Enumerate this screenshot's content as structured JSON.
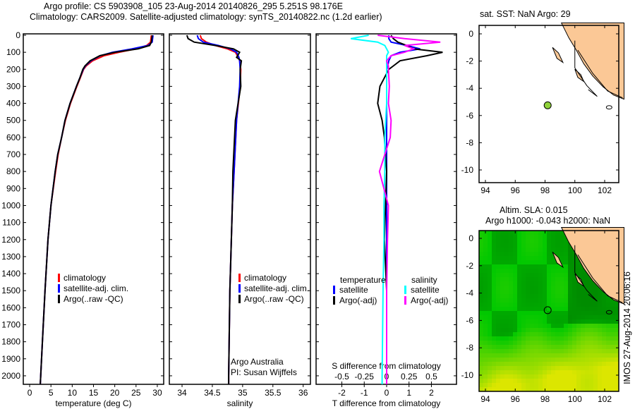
{
  "title_line1": "Argo profile: CS 5903908_105 23-Aug-2014 20140826_295 5.251S 98.176E",
  "title_line2": "Climatology: CARS2009. Satellite-adjusted climatology: synTS_20140822.nc (1.2d earlier)",
  "colors": {
    "climatology": "#ff0000",
    "satellite": "#0000ff",
    "argo": "#000000",
    "sal_satellite": "#00ffff",
    "sal_argo": "#ff00ff",
    "land": "#fbc896"
  },
  "chart_data": [
    {
      "type": "line",
      "name": "temperature",
      "xlabel": "temperature (deg C)",
      "xlim": [
        -1.5,
        31.5
      ],
      "ylim": [
        0,
        2050
      ],
      "xticks": [
        0,
        5,
        10,
        15,
        20,
        25,
        30
      ],
      "xtick_labels": [
        "0",
        "5",
        "10",
        "15",
        "20",
        "25",
        "30"
      ],
      "yticks": [
        0,
        100,
        200,
        300,
        400,
        500,
        600,
        700,
        800,
        900,
        1000,
        1100,
        1200,
        1300,
        1400,
        1500,
        1600,
        1700,
        1800,
        1900,
        2000
      ],
      "depth": [
        0,
        40,
        60,
        80,
        100,
        120,
        150,
        180,
        200,
        250,
        300,
        400,
        500,
        600,
        700,
        800,
        1000,
        1200,
        1500,
        1800,
        2000,
        2050
      ],
      "series": [
        {
          "name": "climatology",
          "values": [
            28.6,
            28.4,
            27.5,
            25,
            21,
            17.5,
            14.8,
            13.3,
            12.7,
            11.9,
            11.1,
            9.6,
            8.4,
            7.5,
            6.7,
            6.1,
            5.0,
            4.3,
            3.6,
            3.0,
            2.6,
            2.5
          ]
        },
        {
          "name": "satellite-adj. clim.",
          "values": [
            29,
            28.8,
            27.8,
            24,
            19.5,
            16.6,
            14.4,
            13.1,
            12.6,
            11.8,
            11,
            9.5,
            8.3,
            7.5,
            6.6,
            6.0,
            5.0,
            4.3,
            3.6,
            3.0,
            2.6,
            2.5
          ]
        },
        {
          "name": "Argo(..raw -QC)",
          "values": [
            28.8,
            28.6,
            28.2,
            25.5,
            20,
            16.5,
            14.2,
            13.0,
            12.5,
            11.8,
            11,
            9.5,
            8.3,
            7.5,
            6.6,
            6.0,
            5.0,
            4.3,
            3.6,
            3.0,
            2.6,
            2.5
          ]
        }
      ],
      "legend": [
        "climatology",
        "satellite-adj. clim.",
        "Argo(..raw -QC)"
      ]
    },
    {
      "type": "line",
      "name": "salinity",
      "xlabel": "salinity",
      "xlim": [
        33.79,
        36.12
      ],
      "ylim": [
        0,
        2050
      ],
      "xticks": [
        34,
        34.5,
        35,
        35.5,
        36
      ],
      "xtick_labels": [
        "34",
        "34.5",
        "35",
        "35.5",
        "36"
      ],
      "depth": [
        0,
        20,
        40,
        60,
        80,
        100,
        130,
        150,
        200,
        300,
        500,
        800,
        1000,
        1500,
        2000,
        2050
      ],
      "series": [
        {
          "name": "climatology",
          "values": [
            34.3,
            34.32,
            34.4,
            34.55,
            34.75,
            34.88,
            34.93,
            34.95,
            34.97,
            34.96,
            34.9,
            34.86,
            34.83,
            34.79,
            34.77,
            34.77
          ]
        },
        {
          "name": "satellite-adj. clim.",
          "values": [
            34.25,
            34.27,
            34.35,
            34.6,
            34.8,
            34.9,
            34.94,
            34.95,
            34.96,
            34.95,
            34.9,
            34.86,
            34.83,
            34.79,
            34.77,
            34.77
          ]
        },
        {
          "name": "Argo(..raw -QC)",
          "values": [
            34.08,
            34.1,
            34.2,
            34.55,
            34.85,
            34.95,
            34.9,
            34.98,
            34.96,
            34.97,
            34.88,
            34.84,
            34.83,
            34.79,
            34.77,
            34.77
          ]
        }
      ],
      "legend": [
        "climatology",
        "satellite-adj. clim.",
        "Argo(..raw -QC)"
      ],
      "annotation": [
        "Argo Australia",
        "PI: Susan Wijffels"
      ]
    },
    {
      "type": "line",
      "name": "difference",
      "xlabel": "T difference from climatology",
      "xlabel_top": "S difference from climatology",
      "xlim": [
        -3.15,
        3.12
      ],
      "ylim": [
        0,
        2050
      ],
      "xticks": [
        -2,
        -1,
        0,
        1,
        2
      ],
      "xtick_labels": [
        "-2",
        "-1",
        "0",
        "1",
        "2"
      ],
      "s_xticks": [
        -0.5,
        -0.25,
        0,
        0.25,
        0.5
      ],
      "s_xtick_labels": [
        "-0.5",
        "-0.25",
        "0",
        "0.25",
        "0.5"
      ],
      "depth": [
        0,
        20,
        40,
        60,
        80,
        100,
        120,
        150,
        180,
        200,
        300,
        400,
        500,
        600,
        800,
        1000,
        1200,
        1500,
        2000,
        2050
      ],
      "series": [
        {
          "name": "temperature satellite",
          "values": [
            0.1,
            0.1,
            0.2,
            0.9,
            1.5,
            0.6,
            0.2,
            0.1,
            0.05,
            0,
            0,
            0,
            0,
            0,
            0,
            0,
            0,
            0,
            0,
            0
          ]
        },
        {
          "name": "temperature Argo(-adj)",
          "values": [
            0.2,
            0.3,
            0.5,
            0.9,
            1.2,
            2.5,
            1.8,
            0.6,
            0.3,
            0.1,
            -0.3,
            -0.4,
            -0.2,
            -0.1,
            0,
            -0.05,
            -0.1,
            0,
            0,
            0
          ]
        },
        {
          "name": "salinity satellite",
          "values": [
            -0.2,
            -0.4,
            -0.1,
            -0.02,
            0,
            0.02,
            0,
            0,
            0,
            0,
            0,
            0,
            -0.01,
            -0.02,
            -0.02,
            -0.03,
            -0.03,
            -0.04,
            -0.05,
            -0.05
          ]
        },
        {
          "name": "salinity Argo(-adj)",
          "values": [
            -0.1,
            0.2,
            0.6,
            0.2,
            0.3,
            0.2,
            0.05,
            0,
            0.02,
            0.02,
            0.03,
            0.02,
            0.05,
            0.04,
            -0.08,
            0.02,
            0.01,
            0,
            0,
            0
          ]
        }
      ],
      "legend_headers": [
        "temperature",
        "salinity"
      ],
      "legend": [
        "satellite",
        "Argo(-adj)",
        "satellite",
        "Argo(-adj)"
      ]
    }
  ],
  "map1": {
    "title": "sat. SST: NaN Argo: 29",
    "xticks": [
      "94",
      "96",
      "98",
      "100",
      "102"
    ],
    "yticks": [
      "0",
      "-2",
      "-4",
      "-6",
      "-8",
      "-10"
    ],
    "point": {
      "lon": 98.176,
      "lat": -5.251
    }
  },
  "map2": {
    "title1": "Altim. SLA: 0.015",
    "title2": "Argo h1000: -0.043 h2000: NaN",
    "xticks": [
      "94",
      "96",
      "98",
      "100",
      "102"
    ],
    "yticks": [
      "0",
      "-2",
      "-4",
      "-6",
      "-8",
      "-10"
    ],
    "point": {
      "lon": 98.176,
      "lat": -5.251
    }
  },
  "credit": "IMOS 27-Aug-2014 20:06:16"
}
